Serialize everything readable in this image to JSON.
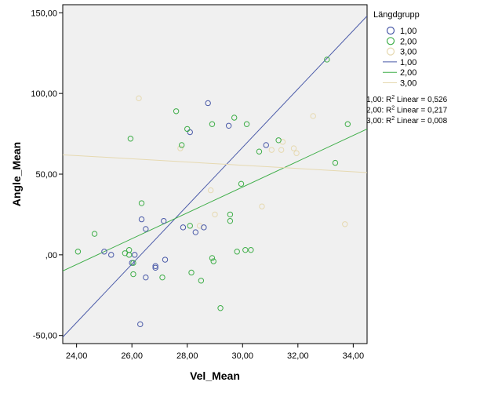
{
  "chart_data": {
    "type": "scatter",
    "xlabel": "Vel_Mean",
    "ylabel": "Angle_Mean",
    "xlim": [
      23.5,
      34.5
    ],
    "ylim": [
      -55,
      155
    ],
    "x_ticks": [
      24,
      26,
      28,
      30,
      32,
      34
    ],
    "x_tick_labels": [
      "24,00",
      "26,00",
      "28,00",
      "30,00",
      "32,00",
      "34,00"
    ],
    "y_ticks": [
      -50,
      0,
      50,
      100,
      150
    ],
    "y_tick_labels": [
      "-50,00",
      ",00",
      "50,00",
      "100,00",
      "150,00"
    ],
    "grid": false,
    "legend": {
      "title": "Längdgrupp",
      "placement": "right",
      "marker_entries": [
        "1,00",
        "2,00",
        "3,00"
      ],
      "line_entries": [
        "1,00",
        "2,00",
        "3,00"
      ]
    },
    "r2_labels": [
      {
        "prefix": "1,00: R",
        "sup": "2",
        "suffix": " Linear = 0,526"
      },
      {
        "prefix": "2,00: R",
        "sup": "2",
        "suffix": " Linear = 0,217"
      },
      {
        "prefix": "3,00: R",
        "sup": "2",
        "suffix": " Linear = 0,008"
      }
    ],
    "series": [
      {
        "name": "1,00",
        "color": "#4a5aa8",
        "points": [
          [
            25.0,
            2
          ],
          [
            25.25,
            0
          ],
          [
            26.1,
            0
          ],
          [
            26.35,
            22
          ],
          [
            26.5,
            16
          ],
          [
            26.5,
            -14
          ],
          [
            26.85,
            -8
          ],
          [
            26.85,
            -7
          ],
          [
            27.2,
            -3
          ],
          [
            27.15,
            21
          ],
          [
            27.85,
            17
          ],
          [
            28.1,
            76
          ],
          [
            28.3,
            14
          ],
          [
            28.6,
            17
          ],
          [
            28.75,
            94
          ],
          [
            29.5,
            80
          ],
          [
            30.85,
            68
          ],
          [
            26.3,
            -43
          ],
          [
            26.0,
            -5
          ]
        ],
        "fit": [
          [
            23.5,
            -51
          ],
          [
            34.5,
            148
          ]
        ]
      },
      {
        "name": "2,00",
        "color": "#3fae49",
        "points": [
          [
            24.05,
            2
          ],
          [
            24.65,
            13
          ],
          [
            25.75,
            1
          ],
          [
            25.9,
            0
          ],
          [
            25.9,
            3
          ],
          [
            25.95,
            72
          ],
          [
            26.05,
            -5
          ],
          [
            26.05,
            -12
          ],
          [
            26.35,
            32
          ],
          [
            27.1,
            -14
          ],
          [
            27.6,
            89
          ],
          [
            27.8,
            68
          ],
          [
            28.0,
            78
          ],
          [
            28.1,
            18
          ],
          [
            28.15,
            -11
          ],
          [
            28.5,
            -16
          ],
          [
            28.9,
            81
          ],
          [
            28.9,
            -2
          ],
          [
            28.95,
            -4
          ],
          [
            29.2,
            -33
          ],
          [
            29.55,
            21
          ],
          [
            29.55,
            25
          ],
          [
            29.7,
            85
          ],
          [
            29.8,
            2
          ],
          [
            29.95,
            44
          ],
          [
            30.1,
            3
          ],
          [
            30.15,
            81
          ],
          [
            30.3,
            3
          ],
          [
            30.6,
            64
          ],
          [
            31.3,
            71
          ],
          [
            33.05,
            121
          ],
          [
            33.35,
            57
          ],
          [
            33.8,
            81
          ]
        ],
        "fit": [
          [
            23.5,
            -10
          ],
          [
            34.5,
            78
          ]
        ]
      },
      {
        "name": "3,00",
        "color": "#e6d9b0",
        "points": [
          [
            26.25,
            97
          ],
          [
            27.75,
            66
          ],
          [
            28.45,
            18
          ],
          [
            28.85,
            40
          ],
          [
            29.0,
            25
          ],
          [
            30.7,
            30
          ],
          [
            31.05,
            65
          ],
          [
            31.4,
            65
          ],
          [
            31.45,
            70
          ],
          [
            31.85,
            66
          ],
          [
            31.95,
            63
          ],
          [
            32.55,
            86
          ],
          [
            33.7,
            19
          ]
        ],
        "fit": [
          [
            23.5,
            62
          ],
          [
            34.5,
            51
          ]
        ]
      }
    ]
  }
}
